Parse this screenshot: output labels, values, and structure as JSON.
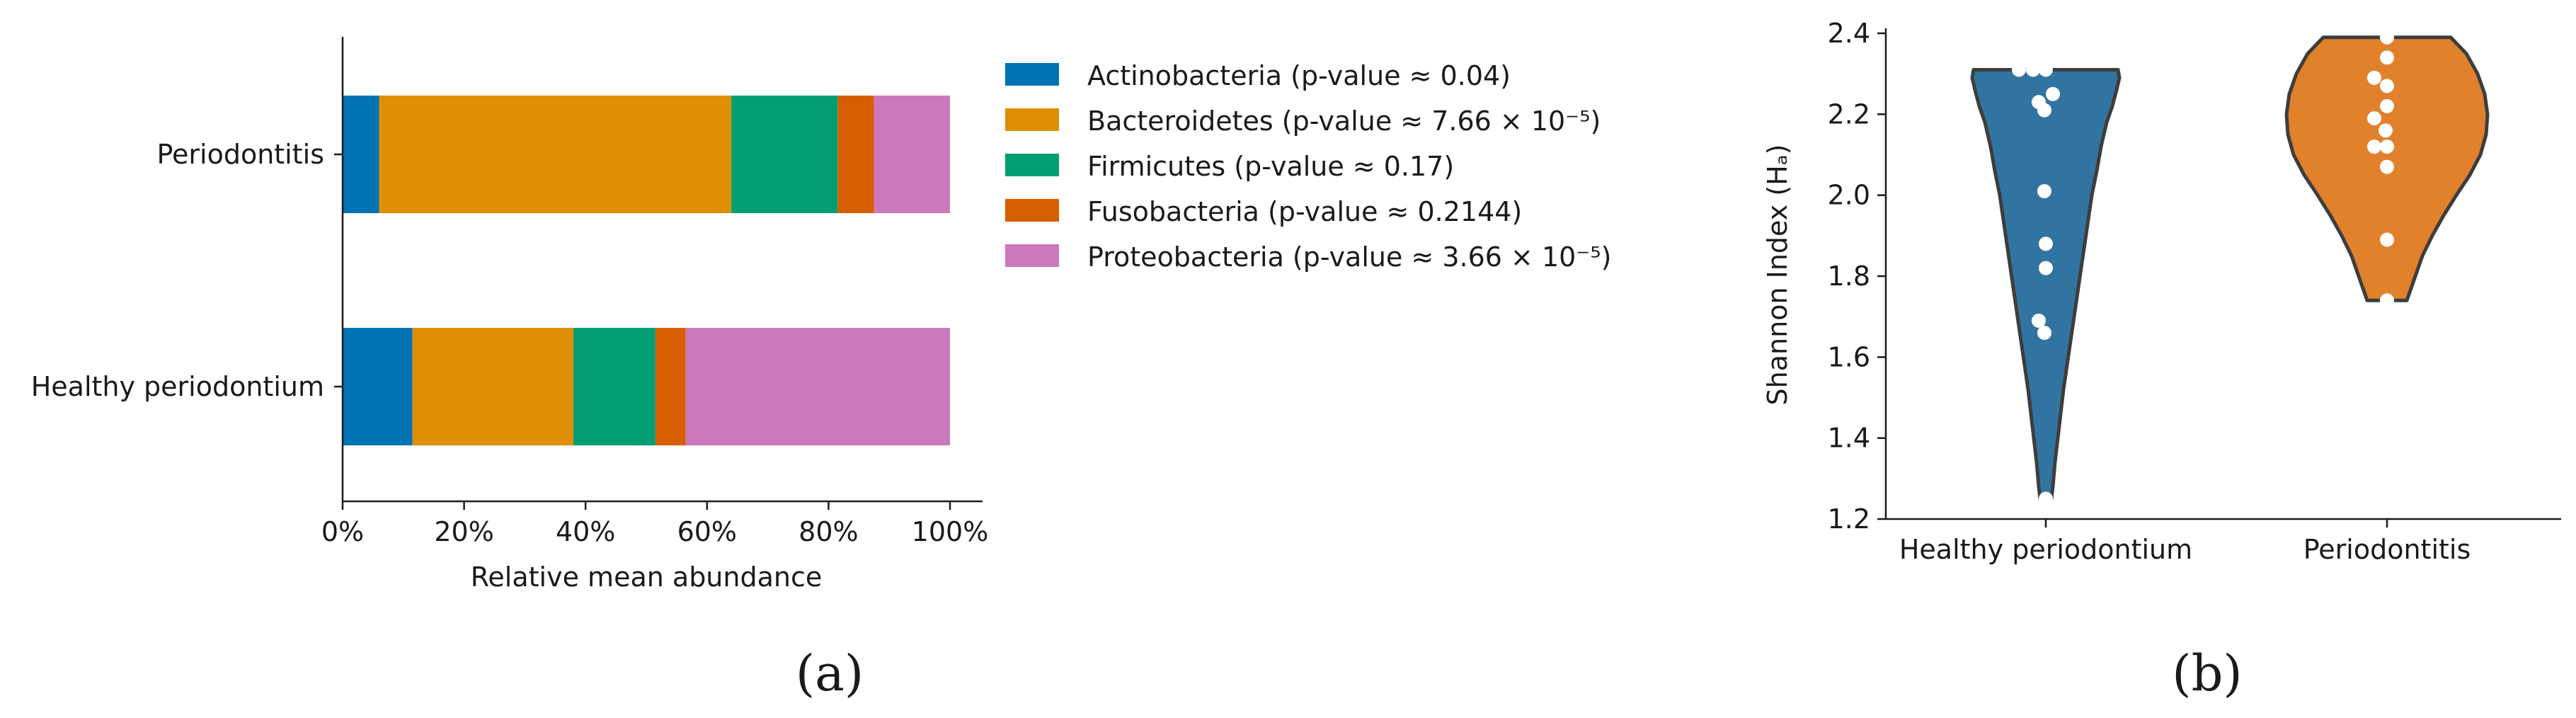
{
  "chart_data": [
    {
      "type": "bar",
      "orientation": "horizontal",
      "stacked": true,
      "panel_label": "(a)",
      "categories": [
        "Periodontitis",
        "Healthy periodontium"
      ],
      "xlabel": "Relative mean abundance",
      "ylabel": "",
      "xlim": [
        0,
        100
      ],
      "xticks": [
        "0%",
        "20%",
        "40%",
        "60%",
        "80%",
        "100%"
      ],
      "grid": false,
      "legend_position": "right",
      "series": [
        {
          "name": "Actinobacteria (p-value ≈ 0.04)",
          "color": "#0173b2",
          "values": [
            6,
            11.5
          ]
        },
        {
          "name": "Bacteroidetes (p-value ≈ 7.66 × 10⁻⁵)",
          "color": "#de8f05",
          "values": [
            58,
            26.5
          ]
        },
        {
          "name": "Firmicutes (p-value ≈ 0.17)",
          "color": "#029e73",
          "values": [
            17.5,
            13.5
          ]
        },
        {
          "name": "Fusobacteria (p-value ≈ 0.2144)",
          "color": "#d55e00",
          "values": [
            6,
            5
          ]
        },
        {
          "name": "Proteobacteria (p-value ≈ 3.66 × 10⁻⁵)",
          "color": "#cc78bc",
          "values": [
            12.5,
            43.5
          ]
        }
      ]
    },
    {
      "type": "violin",
      "panel_label": "(b)",
      "categories": [
        "Healthy periodontium",
        "Periodontitis"
      ],
      "ylabel": "Shannon Index (Hₐ)",
      "xlabel": "",
      "ylim": [
        1.2,
        2.4
      ],
      "yticks": [
        "1.2",
        "1.4",
        "1.6",
        "1.8",
        "2.0",
        "2.2",
        "2.4"
      ],
      "grid": false,
      "series": [
        {
          "name": "Healthy periodontium",
          "color": "#3274a1",
          "points": [
            2.31,
            2.31,
            2.31,
            2.25,
            2.23,
            2.21,
            2.01,
            1.88,
            1.82,
            1.69,
            1.66,
            1.25
          ],
          "range": [
            1.25,
            2.31
          ]
        },
        {
          "name": "Periodontitis",
          "color": "#e1812c",
          "points": [
            2.39,
            2.34,
            2.29,
            2.27,
            2.22,
            2.19,
            2.16,
            2.12,
            2.12,
            2.07,
            1.89,
            1.74
          ],
          "range": [
            1.74,
            2.39
          ]
        }
      ]
    }
  ]
}
